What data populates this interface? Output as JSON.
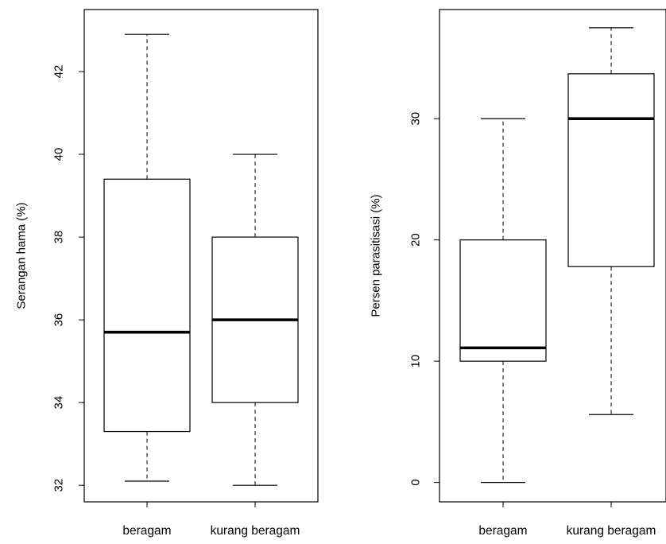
{
  "chart_data": [
    {
      "type": "boxplot",
      "ylabel": "Serangan hama (%)",
      "xlabel": "",
      "ylim": [
        31.6,
        43.5
      ],
      "yticks": [
        32,
        34,
        36,
        38,
        40,
        42
      ],
      "categories": [
        "beragam",
        "kurang beragam"
      ],
      "boxes": [
        {
          "category": "beragam",
          "min": 32.1,
          "q1": 33.3,
          "median": 35.7,
          "q3": 39.4,
          "max": 42.9
        },
        {
          "category": "kurang beragam",
          "min": 32.0,
          "q1": 34.0,
          "median": 36.0,
          "q3": 38.0,
          "max": 40.0
        }
      ]
    },
    {
      "type": "boxplot",
      "ylabel": "Persen parasitisasi (%)",
      "xlabel": "",
      "ylim": [
        -1.6,
        39.0
      ],
      "yticks": [
        0,
        10,
        20,
        30
      ],
      "categories": [
        "beragam",
        "kurang beragam"
      ],
      "boxes": [
        {
          "category": "beragam",
          "min": 0,
          "q1": 10,
          "median": 11.1,
          "q3": 20,
          "max": 30
        },
        {
          "category": "kurang beragam",
          "min": 5.6,
          "q1": 17.8,
          "median": 30,
          "q3": 33.7,
          "max": 37.5
        }
      ]
    }
  ]
}
